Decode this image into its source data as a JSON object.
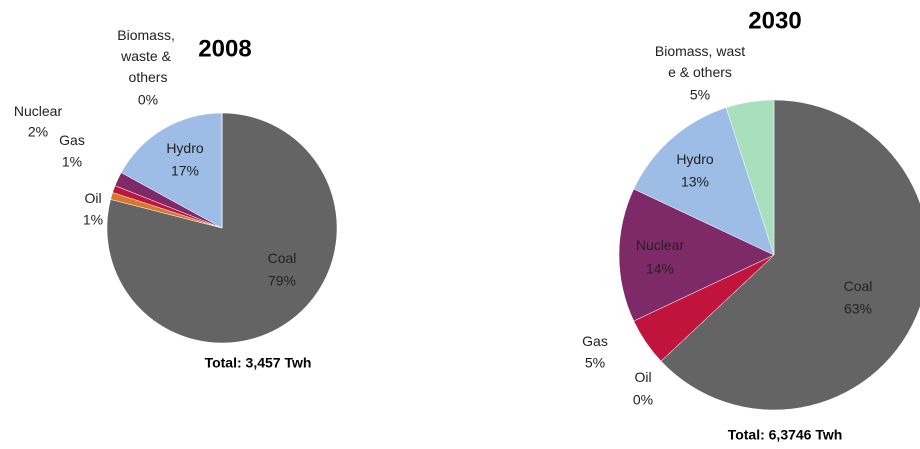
{
  "chart_data": [
    {
      "type": "pie",
      "title": "2008",
      "categories": [
        "Coal",
        "Oil",
        "Gas",
        "Nuclear",
        "Hydro",
        "Biomass, waste & others"
      ],
      "values": [
        79,
        1,
        1,
        2,
        17,
        0
      ],
      "value_labels": [
        "79%",
        "1%",
        "1%",
        "2%",
        "17%",
        "0%"
      ],
      "colors": [
        "#646464",
        "#d9772b",
        "#c0143c",
        "#7f2a68",
        "#9dbde6",
        "#a8e0bd"
      ],
      "annotation": "Total: 3,457 Twh"
    },
    {
      "type": "pie",
      "title": "2030",
      "categories": [
        "Coal",
        "Oil",
        "Gas",
        "Nuclear",
        "Hydro",
        "Biomass, waste & others"
      ],
      "values": [
        63,
        0,
        5,
        14,
        13,
        5
      ],
      "value_labels": [
        "63%",
        "0%",
        "5%",
        "14%",
        "13%",
        "5%"
      ],
      "colors": [
        "#646464",
        "#d9772b",
        "#c0143c",
        "#7f2a68",
        "#9dbde6",
        "#a8e0bd"
      ],
      "annotation": "Total: 6,3746 Twh"
    }
  ]
}
